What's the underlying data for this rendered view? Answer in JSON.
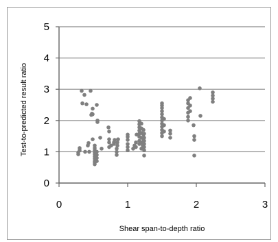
{
  "chart_data": {
    "type": "scatter",
    "xlabel": "Shear span-to-depth ratio",
    "ylabel": "Test-to-predicted  result ratio",
    "xlim": [
      0,
      3
    ],
    "ylim": [
      0,
      5
    ],
    "x_ticks": [
      "0",
      "1",
      "2",
      "3"
    ],
    "y_ticks": [
      "0",
      "1",
      "2",
      "3",
      "4",
      "5"
    ],
    "grid": "horizontal",
    "legend": "none",
    "marker_color": "#7f7f7f",
    "gridline_color": "#8c8c8c",
    "series": [
      {
        "points": [
          [
            0.28,
            0.92
          ],
          [
            0.28,
            0.98
          ],
          [
            0.3,
            1.05
          ],
          [
            0.3,
            1.12
          ],
          [
            0.33,
            2.95
          ],
          [
            0.34,
            2.55
          ],
          [
            0.37,
            2.82
          ],
          [
            0.38,
            1.0
          ],
          [
            0.4,
            2.52
          ],
          [
            0.42,
            1.2
          ],
          [
            0.43,
            1.28
          ],
          [
            0.44,
            1.0
          ],
          [
            0.46,
            2.95
          ],
          [
            0.47,
            2.18
          ],
          [
            0.48,
            2.22
          ],
          [
            0.49,
            2.2
          ],
          [
            0.49,
            2.38
          ],
          [
            0.49,
            1.4
          ],
          [
            0.52,
            0.6
          ],
          [
            0.52,
            0.65
          ],
          [
            0.52,
            0.7
          ],
          [
            0.52,
            0.78
          ],
          [
            0.52,
            0.85
          ],
          [
            0.52,
            0.92
          ],
          [
            0.52,
            0.98
          ],
          [
            0.52,
            1.05
          ],
          [
            0.52,
            1.12
          ],
          [
            0.52,
            1.2
          ],
          [
            0.55,
            0.7
          ],
          [
            0.55,
            0.8
          ],
          [
            0.55,
            0.9
          ],
          [
            0.55,
            1.0
          ],
          [
            0.55,
            2.5
          ],
          [
            0.56,
            1.95
          ],
          [
            0.56,
            2.0
          ],
          [
            0.6,
            1.45
          ],
          [
            0.62,
            1.1
          ],
          [
            0.72,
            1.78
          ],
          [
            0.73,
            1.65
          ],
          [
            0.73,
            1.4
          ],
          [
            0.73,
            1.3
          ],
          [
            0.73,
            1.15
          ],
          [
            0.76,
            1.2
          ],
          [
            0.8,
            1.25
          ],
          [
            0.8,
            1.3
          ],
          [
            0.81,
            1.38
          ],
          [
            0.84,
            0.9
          ],
          [
            0.84,
            1.0
          ],
          [
            0.84,
            1.1
          ],
          [
            0.85,
            1.2
          ],
          [
            0.85,
            1.3
          ],
          [
            0.86,
            1.4
          ],
          [
            1.0,
            1.05
          ],
          [
            1.0,
            1.15
          ],
          [
            1.0,
            1.25
          ],
          [
            1.0,
            1.38
          ],
          [
            1.0,
            1.48
          ],
          [
            1.0,
            1.55
          ],
          [
            1.08,
            1.1
          ],
          [
            1.1,
            1.2
          ],
          [
            1.12,
            1.15
          ],
          [
            1.12,
            1.3
          ],
          [
            1.13,
            1.55
          ],
          [
            1.17,
            1.25
          ],
          [
            1.17,
            1.35
          ],
          [
            1.17,
            1.48
          ],
          [
            1.17,
            1.58
          ],
          [
            1.17,
            1.68
          ],
          [
            1.17,
            1.78
          ],
          [
            1.17,
            1.88
          ],
          [
            1.17,
            1.98
          ],
          [
            1.2,
            1.1
          ],
          [
            1.2,
            1.3
          ],
          [
            1.2,
            1.45
          ],
          [
            1.2,
            1.6
          ],
          [
            1.2,
            1.75
          ],
          [
            1.2,
            1.9
          ],
          [
            1.22,
            1.2
          ],
          [
            1.23,
            1.4
          ],
          [
            1.23,
            1.55
          ],
          [
            1.23,
            1.7
          ],
          [
            1.24,
            0.88
          ],
          [
            1.24,
            1.05
          ],
          [
            1.24,
            1.15
          ],
          [
            1.24,
            1.25
          ],
          [
            1.24,
            1.35
          ],
          [
            1.24,
            1.45
          ],
          [
            1.24,
            1.58
          ],
          [
            1.5,
            1.5
          ],
          [
            1.5,
            1.6
          ],
          [
            1.5,
            1.7
          ],
          [
            1.5,
            1.8
          ],
          [
            1.5,
            1.9
          ],
          [
            1.5,
            2.0
          ],
          [
            1.5,
            2.1
          ],
          [
            1.5,
            2.2
          ],
          [
            1.5,
            2.3
          ],
          [
            1.5,
            2.4
          ],
          [
            1.5,
            2.48
          ],
          [
            1.5,
            2.55
          ],
          [
            1.53,
            1.65
          ],
          [
            1.53,
            1.85
          ],
          [
            1.53,
            2.05
          ],
          [
            1.62,
            1.45
          ],
          [
            1.62,
            1.58
          ],
          [
            1.62,
            1.68
          ],
          [
            1.88,
            2.0
          ],
          [
            1.88,
            2.12
          ],
          [
            1.88,
            2.25
          ],
          [
            1.88,
            2.4
          ],
          [
            1.88,
            2.55
          ],
          [
            1.88,
            2.65
          ],
          [
            1.91,
            2.3
          ],
          [
            1.91,
            2.48
          ],
          [
            1.91,
            2.72
          ],
          [
            1.96,
            1.85
          ],
          [
            1.97,
            1.5
          ],
          [
            1.97,
            1.38
          ],
          [
            1.97,
            0.88
          ],
          [
            2.05,
            3.03
          ],
          [
            2.06,
            2.15
          ],
          [
            2.24,
            2.6
          ],
          [
            2.24,
            2.7
          ],
          [
            2.24,
            2.8
          ],
          [
            2.24,
            2.9
          ]
        ]
      }
    ]
  }
}
